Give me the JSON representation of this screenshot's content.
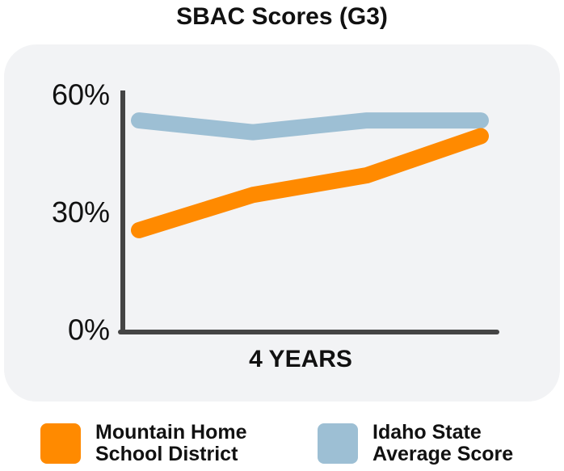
{
  "chart_data": {
    "type": "line",
    "title": "SBAC Scores (G3)",
    "x_label": "4 YEARS",
    "categories": [
      null,
      null,
      null,
      null
    ],
    "series": [
      {
        "name": "Mountain Home School District",
        "color": "#ff8a00",
        "values": [
          26,
          35,
          40,
          50
        ]
      },
      {
        "name": "Idaho State Average Score",
        "color": "#9dbfd4",
        "values": [
          54,
          51,
          54,
          54
        ]
      }
    ],
    "ylim": [
      0,
      60
    ],
    "yticks": [
      {
        "value": 0,
        "label": "0%"
      },
      {
        "value": 30,
        "label": "30%"
      },
      {
        "value": 60,
        "label": "60%"
      }
    ],
    "grid": false
  }
}
